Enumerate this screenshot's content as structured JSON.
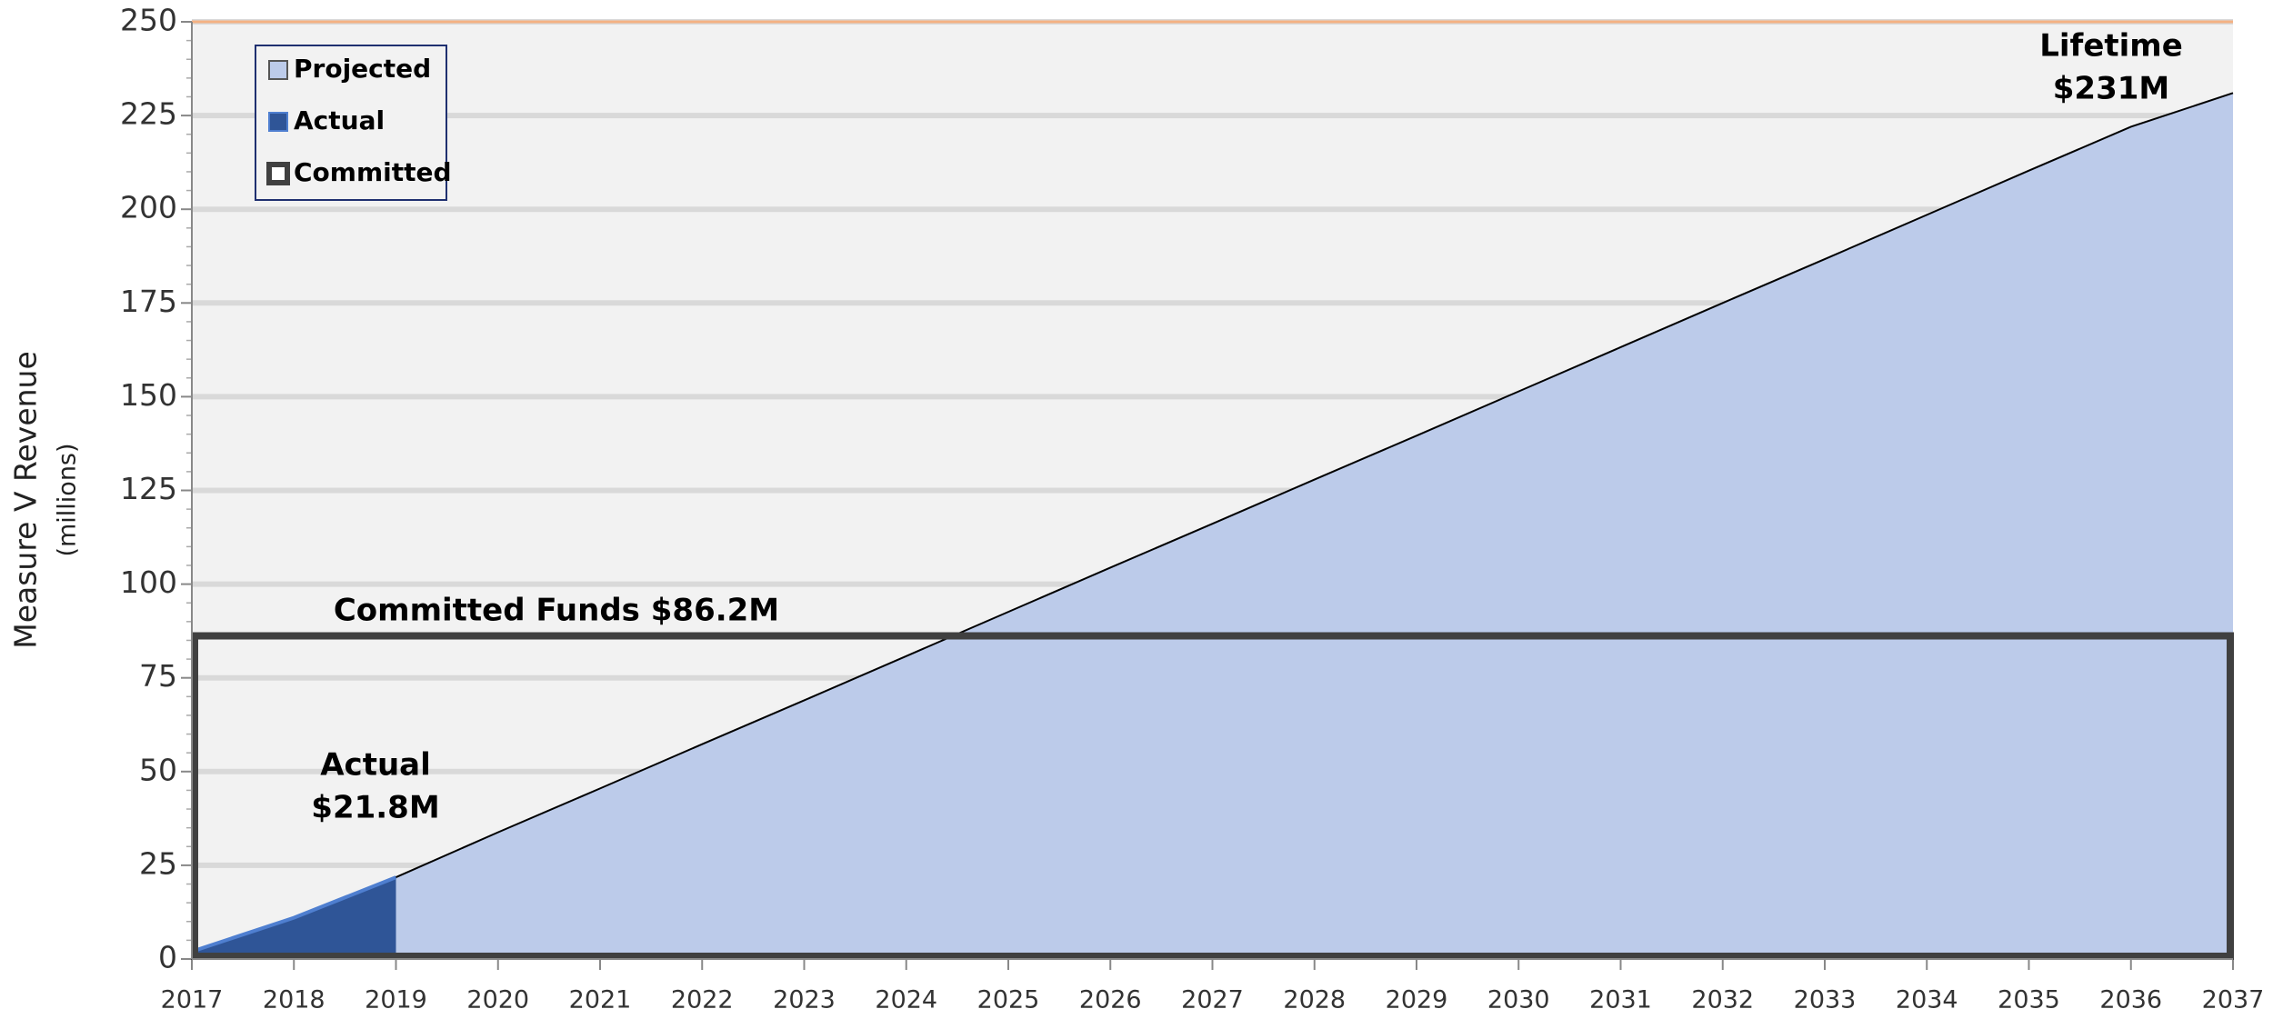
{
  "chart_data": {
    "type": "area",
    "y_label": "Measure V Revenue",
    "y_sublabel": "(millions)",
    "x": [
      2017,
      2018,
      2019,
      2020,
      2021,
      2022,
      2023,
      2024,
      2025,
      2026,
      2027,
      2028,
      2029,
      2030,
      2031,
      2032,
      2033,
      2034,
      2035,
      2036,
      2037
    ],
    "series": [
      {
        "name": "Projected",
        "color": "#bccbea",
        "values": [
          2,
          11,
          21.8,
          33.8,
          45.5,
          57.3,
          69,
          80.8,
          92.6,
          104.4,
          116.1,
          127.9,
          139.6,
          151.4,
          163.2,
          175,
          186.7,
          198.5,
          210.3,
          222,
          231
        ]
      },
      {
        "name": "Actual",
        "color": "#2f5597",
        "values": [
          2,
          11,
          21.8,
          null,
          null,
          null,
          null,
          null,
          null,
          null,
          null,
          null,
          null,
          null,
          null,
          null,
          null,
          null,
          null,
          null,
          null
        ]
      }
    ],
    "committed": {
      "name": "Committed",
      "color": "#404040",
      "value": 86.2
    },
    "annotations": [
      "Committed Funds $86.2M",
      "Actual",
      "$21.8M",
      "Lifetime",
      "$231M"
    ],
    "xlim": [
      2017,
      2037
    ],
    "xticks": [
      2017,
      2018,
      2019,
      2020,
      2021,
      2022,
      2023,
      2024,
      2025,
      2026,
      2027,
      2028,
      2029,
      2030,
      2031,
      2032,
      2033,
      2034,
      2035,
      2036,
      2037
    ],
    "ylim": [
      0,
      250
    ],
    "yticks": [
      0,
      25,
      50,
      75,
      100,
      125,
      150,
      175,
      200,
      225,
      250
    ],
    "grid": true,
    "legend": "upper-left"
  }
}
